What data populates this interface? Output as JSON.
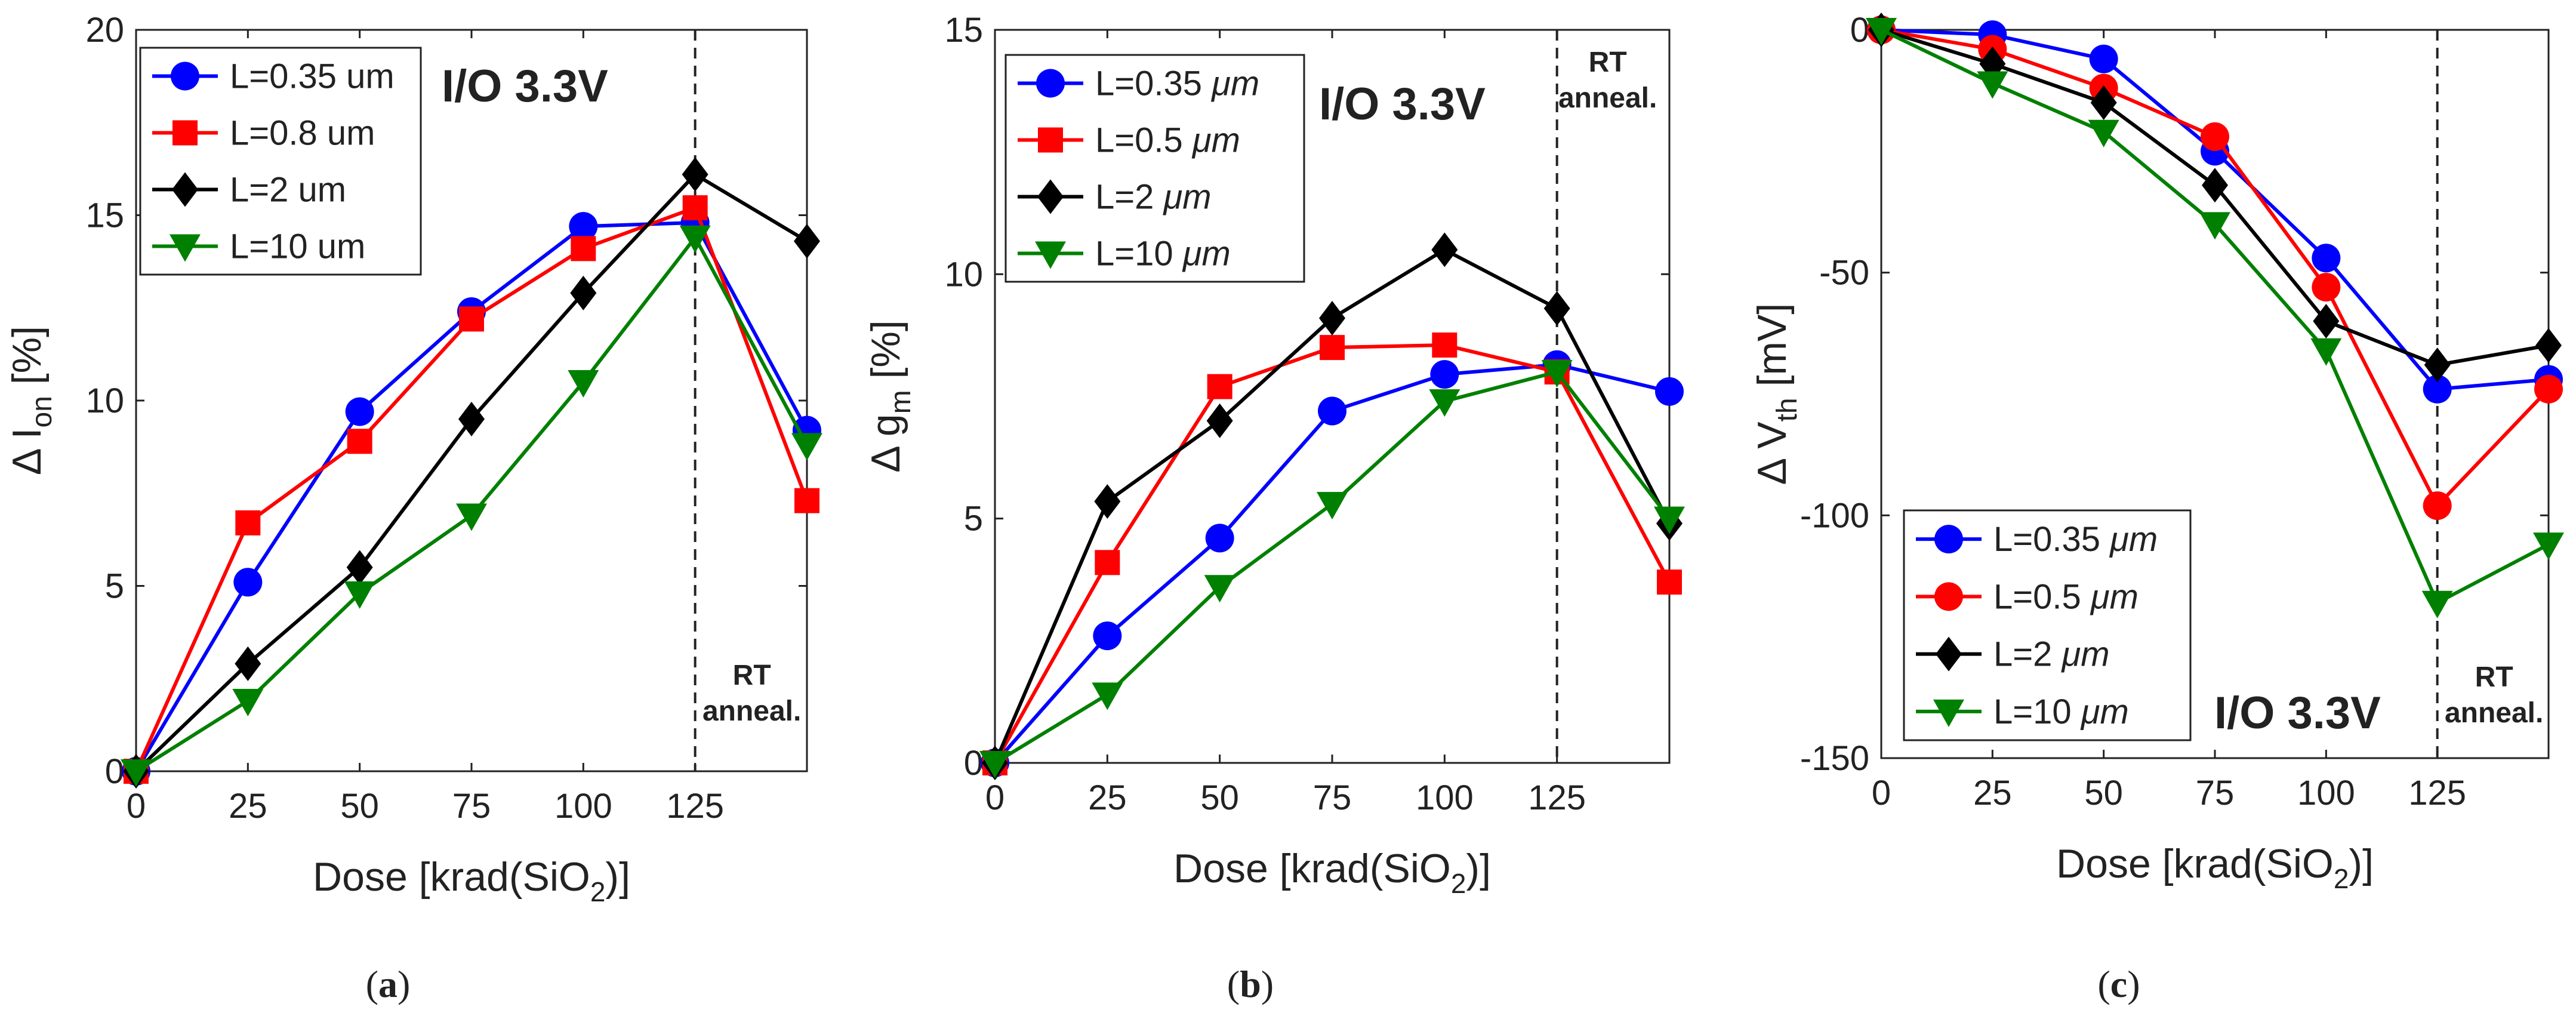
{
  "figure": {
    "panels": [
      "a",
      "b",
      "c"
    ]
  },
  "chart_data": [
    {
      "id": "a",
      "type": "line",
      "caption": "(a)",
      "xlabel": "Dose [krad(SiO2)]",
      "ylabel": "Δ Ion [%]",
      "ylabel_main": "Δ I",
      "ylabel_sub": "on",
      "ylabel_tail": " [%]",
      "xlim": [
        0,
        150
      ],
      "ylim": [
        0,
        20
      ],
      "xticks": [
        0,
        25,
        50,
        75,
        100,
        125
      ],
      "yticks": [
        0,
        5,
        10,
        15,
        20
      ],
      "x": [
        0,
        25,
        50,
        75,
        100,
        125,
        150
      ],
      "vline": 125,
      "annotation_box": "I/O 3.3V",
      "anneal_label": [
        "RT",
        "anneal."
      ],
      "legend_position": "top-left",
      "series": [
        {
          "name": "L=0.35 um",
          "label": "L=0.35 um",
          "unit": "",
          "color": "#0000ff",
          "marker": "circle",
          "values": [
            0,
            5.1,
            9.7,
            12.4,
            14.7,
            14.8,
            9.2
          ]
        },
        {
          "name": "L=0.8 um",
          "label": "L=0.8 um",
          "unit": "",
          "color": "#ff0000",
          "marker": "square",
          "values": [
            0,
            6.7,
            8.9,
            12.2,
            14.1,
            15.2,
            7.3
          ]
        },
        {
          "name": "L=2 um",
          "label": "L=2 um",
          "unit": "",
          "color": "#000000",
          "marker": "diamond",
          "values": [
            0,
            2.9,
            5.5,
            9.5,
            12.9,
            16.1,
            14.3
          ]
        },
        {
          "name": "L=10 um",
          "label": "L=10 um",
          "unit": "",
          "color": "#008000",
          "marker": "triangle-down",
          "values": [
            0,
            1.9,
            4.8,
            6.9,
            10.5,
            14.4,
            8.8
          ]
        }
      ]
    },
    {
      "id": "b",
      "type": "line",
      "caption": "(b)",
      "xlabel": "Dose [krad(SiO2)]",
      "ylabel": "Δ gm [%]",
      "ylabel_main": "Δ g",
      "ylabel_sub": "m",
      "ylabel_tail": " [%]",
      "xlim": [
        0,
        150
      ],
      "ylim": [
        0,
        15
      ],
      "xticks": [
        0,
        25,
        50,
        75,
        100,
        125
      ],
      "yticks": [
        0,
        5,
        10,
        15
      ],
      "x": [
        0,
        25,
        50,
        75,
        100,
        125,
        150
      ],
      "vline": 125,
      "annotation_box": "I/O 3.3V",
      "anneal_label": [
        "RT",
        "anneal."
      ],
      "legend_position": "top-left",
      "series": [
        {
          "name": "L=0.35 μm",
          "label": "L=0.35 ",
          "unit": "μm",
          "color": "#0000ff",
          "marker": "circle",
          "values": [
            0,
            2.6,
            4.6,
            7.2,
            7.95,
            8.15,
            7.6
          ]
        },
        {
          "name": "L=0.5 μm",
          "label": "L=0.5 ",
          "unit": "μm",
          "color": "#ff0000",
          "marker": "square",
          "values": [
            0,
            4.1,
            7.7,
            8.5,
            8.55,
            8.0,
            3.7
          ]
        },
        {
          "name": "L=2 μm",
          "label": "L=2 ",
          "unit": "μm",
          "color": "#000000",
          "marker": "diamond",
          "values": [
            0,
            5.35,
            7.0,
            9.1,
            10.5,
            9.3,
            4.9
          ]
        },
        {
          "name": "L=10 μm",
          "label": "L=10 ",
          "unit": "μm",
          "color": "#008000",
          "marker": "triangle-down",
          "values": [
            0,
            1.4,
            3.6,
            5.3,
            7.4,
            8.0,
            5.0
          ]
        }
      ]
    },
    {
      "id": "c",
      "type": "line",
      "caption": "(c)",
      "xlabel": "Dose [krad(SiO2)]",
      "ylabel": "Δ Vth [mV]",
      "ylabel_main": "Δ V",
      "ylabel_sub": "th",
      "ylabel_tail": " [mV]",
      "xlim": [
        0,
        150
      ],
      "ylim": [
        -150,
        0
      ],
      "xticks": [
        0,
        25,
        50,
        75,
        100,
        125
      ],
      "yticks": [
        -150,
        -100,
        -50,
        0
      ],
      "x": [
        0,
        25,
        50,
        75,
        100,
        125,
        150
      ],
      "vline": 125,
      "annotation_box": "I/O 3.3V",
      "anneal_label": [
        "RT",
        "anneal."
      ],
      "legend_position": "bottom-left",
      "series": [
        {
          "name": "L=0.35 μm",
          "label": "L=0.35 ",
          "unit": "μm",
          "color": "#0000ff",
          "marker": "circle",
          "values": [
            0,
            -1,
            -6,
            -25,
            -47,
            -74,
            -72
          ]
        },
        {
          "name": "L=0.5 μm",
          "label": "L=0.5 ",
          "unit": "μm",
          "color": "#ff0000",
          "marker": "circle",
          "values": [
            0,
            -4,
            -12,
            -22,
            -53,
            -98,
            -74
          ]
        },
        {
          "name": "L=2 μm",
          "label": "L=2 ",
          "unit": "μm",
          "color": "#000000",
          "marker": "diamond",
          "values": [
            0,
            -7,
            -15,
            -32,
            -60,
            -69,
            -65
          ]
        },
        {
          "name": "L=10 μm",
          "label": "L=10 ",
          "unit": "μm",
          "color": "#008000",
          "marker": "triangle-down",
          "values": [
            0,
            -11,
            -21,
            -40,
            -66,
            -118,
            -106
          ]
        }
      ]
    }
  ]
}
